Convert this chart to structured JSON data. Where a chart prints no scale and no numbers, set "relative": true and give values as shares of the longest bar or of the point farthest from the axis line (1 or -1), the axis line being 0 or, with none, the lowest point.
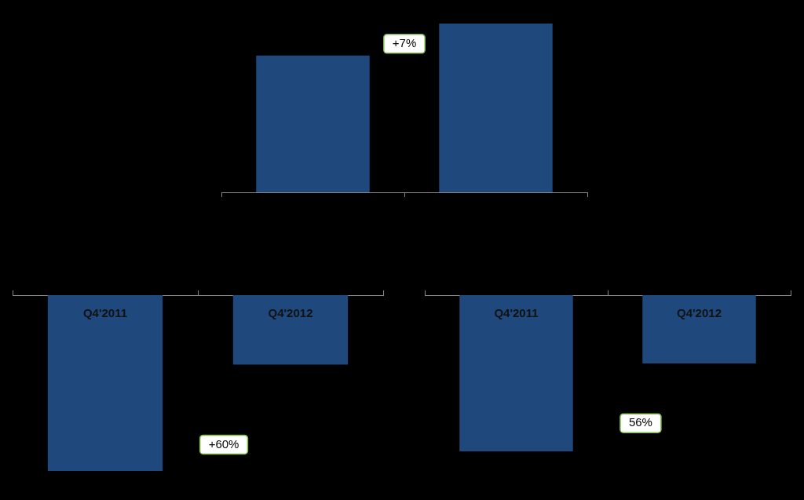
{
  "chart_data": [
    {
      "type": "bar",
      "relative": true,
      "categories": [
        null,
        null
      ],
      "values": [
        0.81,
        1
      ],
      "color": "#1f497d",
      "annotations": [
        "+7%"
      ]
    },
    {
      "type": "bar",
      "relative": true,
      "categories": [
        "Q4'2011",
        "Q4'2012"
      ],
      "values": [
        -1,
        -0.395
      ],
      "color": "#1f497d",
      "annotations": [
        "+60%"
      ]
    },
    {
      "type": "bar",
      "relative": true,
      "categories": [
        "Q4'2011",
        "Q4'2012"
      ],
      "values": [
        -1,
        -0.437
      ],
      "color": "#1f497d",
      "annotations": [
        "56%"
      ]
    }
  ]
}
